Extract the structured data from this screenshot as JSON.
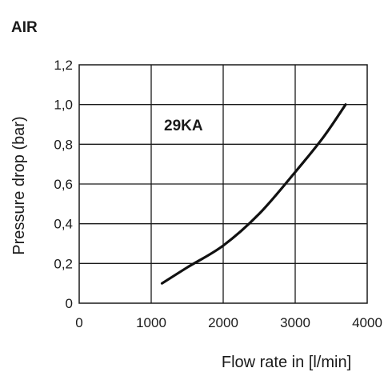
{
  "chart_data": {
    "type": "line",
    "title": "AIR",
    "xlabel": "Flow rate in [l/min]",
    "ylabel": "Pressure drop (bar)",
    "xlim": [
      0,
      4000
    ],
    "ylim": [
      0,
      1.2
    ],
    "x_ticks": [
      0,
      1000,
      2000,
      3000,
      4000
    ],
    "x_tick_labels": [
      "0",
      "1000",
      "2000",
      "3000",
      "4000"
    ],
    "y_ticks": [
      0,
      0.2,
      0.4,
      0.6,
      0.8,
      1.0,
      1.2
    ],
    "y_tick_labels": [
      "0",
      "0,2",
      "0,4",
      "0,6",
      "0,8",
      "1,0",
      "1,2"
    ],
    "grid": true,
    "series": [
      {
        "name": "29KA",
        "color": "#111111",
        "x": [
          1150,
          1500,
          2000,
          2500,
          3000,
          3400,
          3700
        ],
        "y": [
          0.1,
          0.18,
          0.29,
          0.45,
          0.66,
          0.84,
          1.0
        ]
      }
    ]
  }
}
